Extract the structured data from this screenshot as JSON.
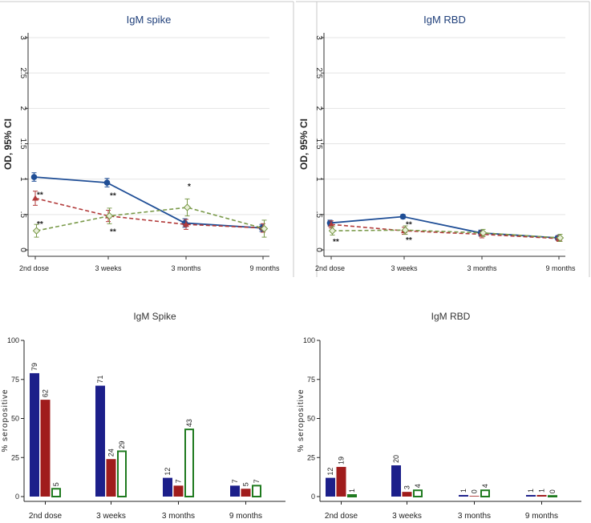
{
  "chart_data": [
    {
      "type": "line",
      "title": "IgM spike",
      "ylabel": "OD, 95% CI",
      "xlabel": "",
      "categories": [
        "2nd dose",
        "3 weeks",
        "3 months",
        "9 months"
      ],
      "ylim": [
        0,
        3
      ],
      "yticks": [
        0,
        0.5,
        1,
        1.5,
        2,
        2.5,
        3
      ],
      "ytick_labels": [
        "0",
        ".5",
        "1",
        "1.5",
        "2",
        "2.5",
        "3"
      ],
      "grid": true,
      "series": [
        {
          "color": "#1f4e96",
          "dash": "solid",
          "marker": "circle",
          "values": [
            1.03,
            0.95,
            0.38,
            0.31
          ],
          "ci": [
            [
              0.97,
              1.09
            ],
            [
              0.89,
              1.01
            ],
            [
              0.32,
              0.44
            ],
            [
              0.26,
              0.36
            ]
          ]
        },
        {
          "color": "#b23a3a",
          "dash": "dashed",
          "marker": "triangle",
          "values": [
            0.73,
            0.48,
            0.36,
            0.31
          ],
          "ci": [
            [
              0.63,
              0.83
            ],
            [
              0.4,
              0.56
            ],
            [
              0.29,
              0.43
            ],
            [
              0.25,
              0.37
            ]
          ]
        },
        {
          "color": "#7a9a4a",
          "dash": "dashed",
          "marker": "diamond",
          "values": [
            0.27,
            0.48,
            0.6,
            0.3
          ],
          "ci": [
            [
              0.18,
              0.36
            ],
            [
              0.37,
              0.59
            ],
            [
              0.48,
              0.72
            ],
            [
              0.18,
              0.42
            ]
          ]
        }
      ],
      "annotations": [
        {
          "text": "**",
          "x_index": 0,
          "y": 0.74
        },
        {
          "text": "**",
          "x_index": 0,
          "y": 0.33
        },
        {
          "text": "**",
          "x_index": 1,
          "y": 0.73
        },
        {
          "text": "**",
          "x_index": 1,
          "y": 0.22
        },
        {
          "text": "*",
          "x_index": 2,
          "y": 0.86
        }
      ]
    },
    {
      "type": "line",
      "title": "IgM RBD",
      "ylabel": "OD, 95% CI",
      "xlabel": "",
      "categories": [
        "2nd dose",
        "3 weeks",
        "3 months",
        "9 months"
      ],
      "ylim": [
        0,
        3
      ],
      "yticks": [
        0,
        0.5,
        1,
        1.5,
        2,
        2.5,
        3
      ],
      "ytick_labels": [
        "0",
        ".5",
        "1",
        "1.5",
        "2",
        "2.5",
        "3"
      ],
      "grid": true,
      "series": [
        {
          "color": "#1f4e96",
          "dash": "solid",
          "marker": "circle",
          "values": [
            0.38,
            0.47,
            0.24,
            0.17
          ],
          "ci": [
            [
              0.34,
              0.42
            ],
            [
              0.44,
              0.5
            ],
            [
              0.2,
              0.28
            ],
            [
              0.14,
              0.2
            ]
          ]
        },
        {
          "color": "#b23a3a",
          "dash": "dashed",
          "marker": "triangle",
          "values": [
            0.36,
            0.27,
            0.22,
            0.16
          ],
          "ci": [
            [
              0.31,
              0.41
            ],
            [
              0.22,
              0.32
            ],
            [
              0.17,
              0.27
            ],
            [
              0.12,
              0.2
            ]
          ]
        },
        {
          "color": "#7a9a4a",
          "dash": "dashed",
          "marker": "diamond",
          "values": [
            0.27,
            0.28,
            0.24,
            0.17
          ],
          "ci": [
            [
              0.21,
              0.33
            ],
            [
              0.22,
              0.34
            ],
            [
              0.19,
              0.29
            ],
            [
              0.12,
              0.22
            ]
          ]
        }
      ],
      "annotations": [
        {
          "text": "**",
          "x_index": 0,
          "y": 0.08
        },
        {
          "text": "**",
          "x_index": 1,
          "y": 0.32
        },
        {
          "text": "**",
          "x_index": 1,
          "y": 0.1
        }
      ]
    },
    {
      "type": "bar",
      "title": "IgM Spike",
      "ylabel": "% seropositive",
      "xlabel": "",
      "categories": [
        "2nd dose",
        "3 weeks",
        "3 months",
        "9 months"
      ],
      "ylim": [
        0,
        100
      ],
      "yticks": [
        0,
        25,
        50,
        75,
        100
      ],
      "grid": false,
      "series": [
        {
          "color": "#1c1f8a",
          "style": "filled",
          "values": [
            79,
            71,
            12,
            7
          ]
        },
        {
          "color": "#a01c1c",
          "style": "filled",
          "values": [
            62,
            24,
            7,
            5
          ]
        },
        {
          "color": "#1f7a1f",
          "style": "outline",
          "values": [
            5,
            29,
            43,
            7
          ]
        }
      ]
    },
    {
      "type": "bar",
      "title": "IgM RBD",
      "ylabel": "% seropositive",
      "xlabel": "",
      "categories": [
        "2nd dose",
        "3 weeks",
        "3 months",
        "9 months"
      ],
      "ylim": [
        0,
        100
      ],
      "yticks": [
        0,
        25,
        50,
        75,
        100
      ],
      "grid": false,
      "series": [
        {
          "color": "#1c1f8a",
          "style": "filled",
          "values": [
            12,
            20,
            1,
            1
          ]
        },
        {
          "color": "#a01c1c",
          "style": "filled",
          "values": [
            19,
            3,
            0,
            1
          ]
        },
        {
          "color": "#1f7a1f",
          "style": "outline",
          "values": [
            1,
            4,
            4,
            0
          ]
        }
      ]
    }
  ]
}
